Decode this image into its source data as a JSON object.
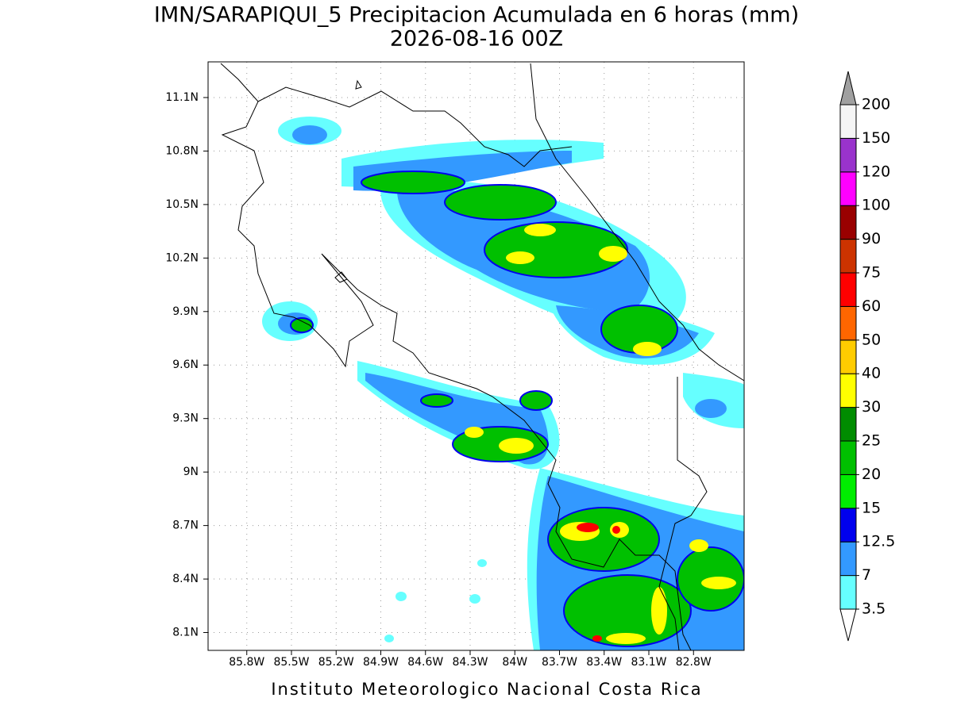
{
  "title": "IMN/SARAPIQUI_5 Precipitacion Acumulada en 6 horas (mm)",
  "subtitle": "2026-08-16 00Z",
  "footer": "Instituto Meteorologico Nacional Costa Rica",
  "map": {
    "xlim": [
      -86.06,
      -82.46
    ],
    "ylim": [
      8.0,
      11.3
    ],
    "xticks": [
      {
        "value": -85.8,
        "label": "85.8W"
      },
      {
        "value": -85.5,
        "label": "85.5W"
      },
      {
        "value": -85.2,
        "label": "85.2W"
      },
      {
        "value": -84.9,
        "label": "84.9W"
      },
      {
        "value": -84.6,
        "label": "84.6W"
      },
      {
        "value": -84.3,
        "label": "84.3W"
      },
      {
        "value": -84,
        "label": "84W"
      },
      {
        "value": -83.7,
        "label": "83.7W"
      },
      {
        "value": -83.4,
        "label": "83.4W"
      },
      {
        "value": -83.1,
        "label": "83.1W"
      },
      {
        "value": -82.8,
        "label": "82.8W"
      }
    ],
    "yticks": [
      {
        "value": 8.1,
        "label": "8.1N"
      },
      {
        "value": 8.4,
        "label": "8.4N"
      },
      {
        "value": 8.7,
        "label": "8.7N"
      },
      {
        "value": 9,
        "label": "9N"
      },
      {
        "value": 9.3,
        "label": "9.3N"
      },
      {
        "value": 9.6,
        "label": "9.6N"
      },
      {
        "value": 9.9,
        "label": "9.9N"
      },
      {
        "value": 10.2,
        "label": "10.2N"
      },
      {
        "value": 10.5,
        "label": "10.5N"
      },
      {
        "value": 10.8,
        "label": "10.8N"
      },
      {
        "value": 11.1,
        "label": "11.1N"
      }
    ],
    "grid": true
  },
  "colorbar": {
    "levels": [
      3.5,
      7,
      12.5,
      15,
      20,
      25,
      30,
      40,
      50,
      60,
      75,
      90,
      100,
      120,
      150,
      200
    ],
    "colors": [
      "#66ffff",
      "#3399ff",
      "#0000ee",
      "#00ee00",
      "#00c000",
      "#008c00",
      "#ffff00",
      "#ffcc00",
      "#ff6600",
      "#ff0000",
      "#cc3300",
      "#990000",
      "#ff00ff",
      "#9933cc",
      "#f5f5f5"
    ],
    "under_color": "#ffffff",
    "over_color": "#a0a0a0"
  }
}
